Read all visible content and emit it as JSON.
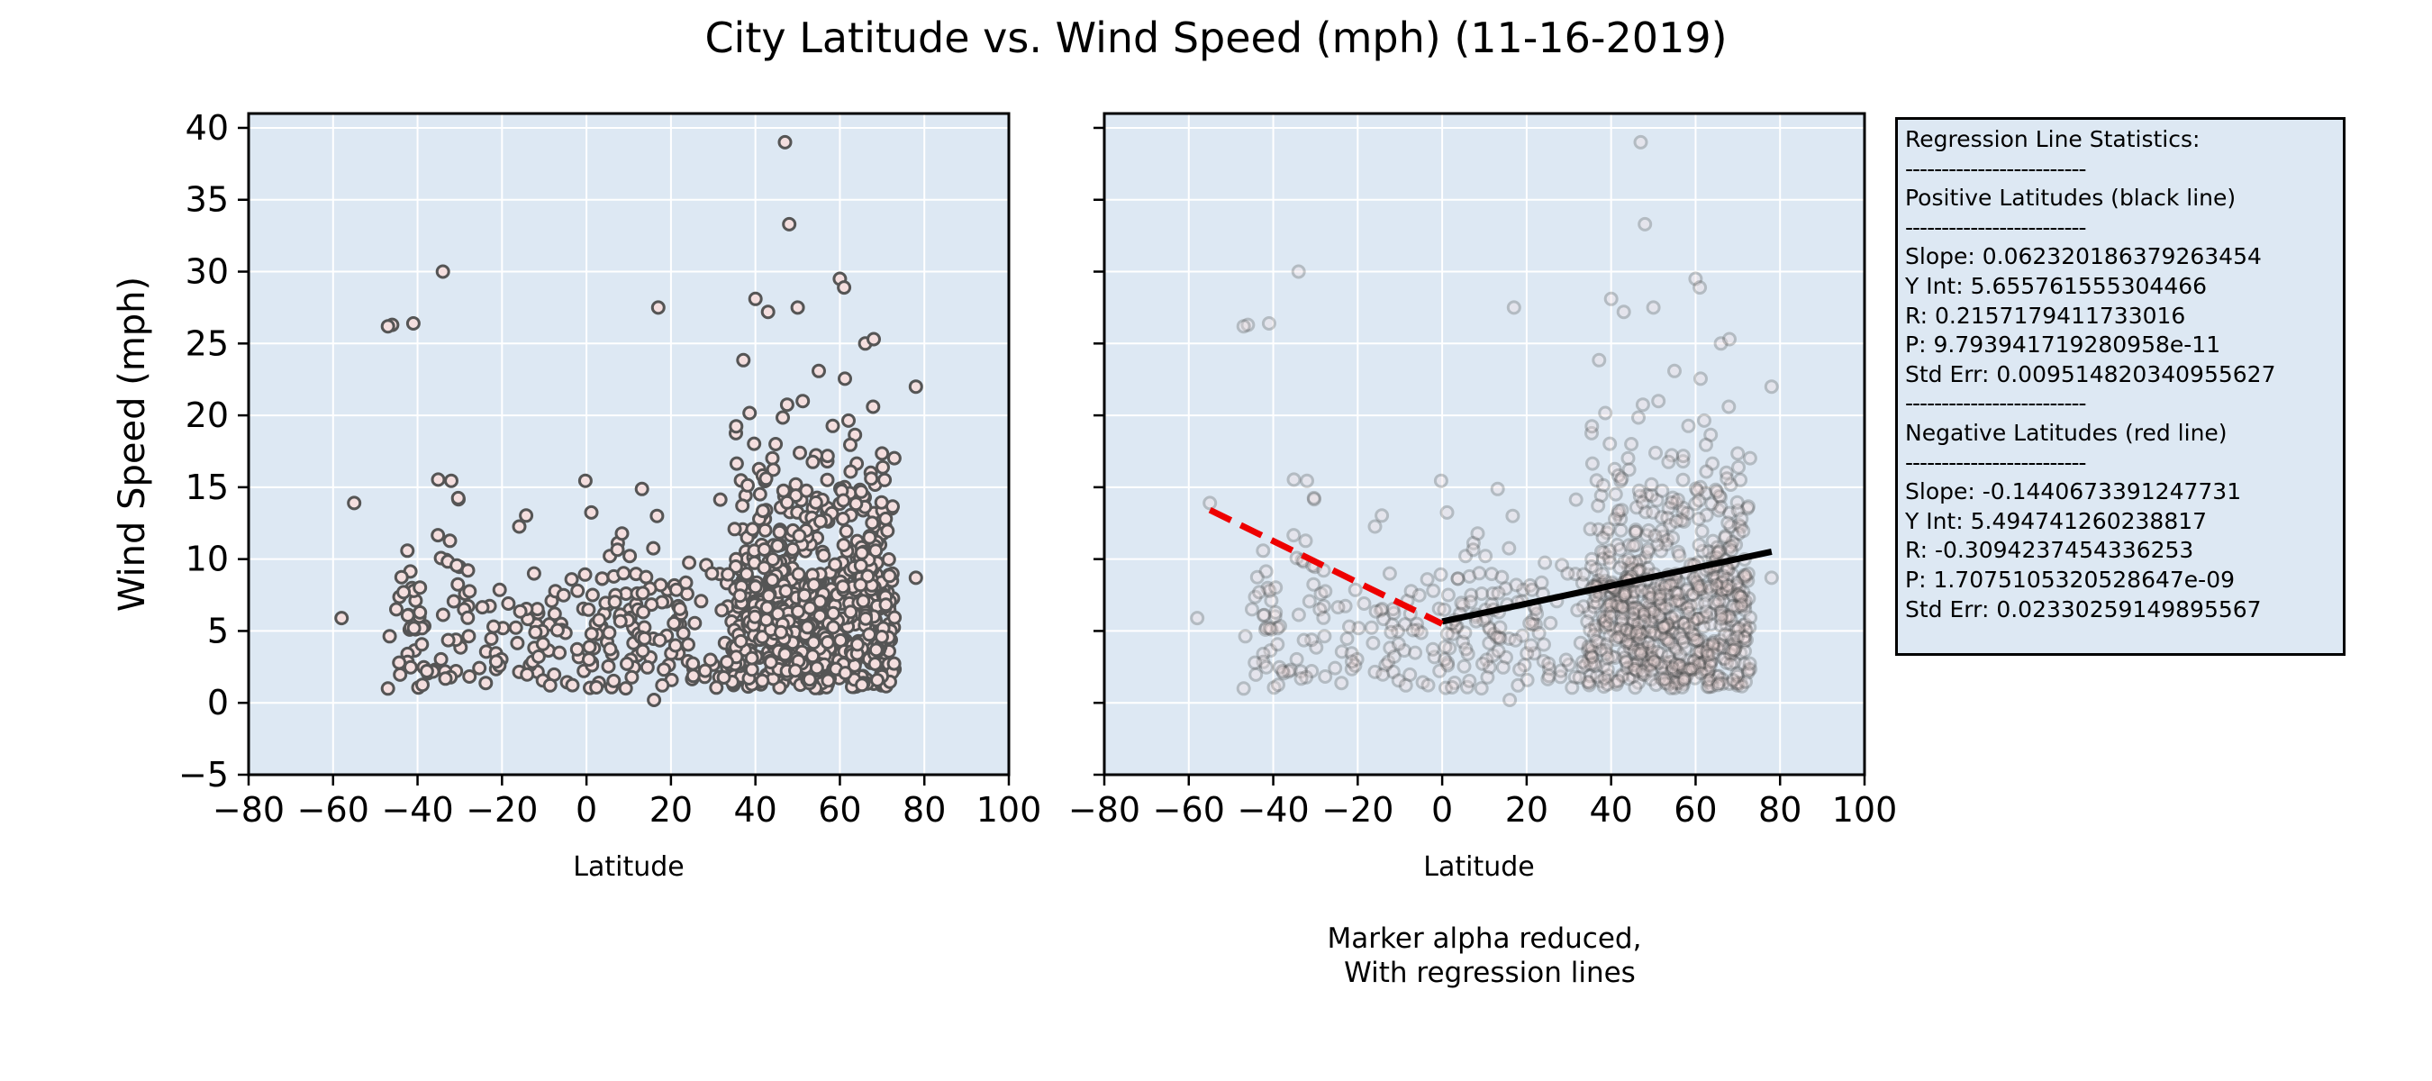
{
  "title": "City Latitude vs. Wind Speed (mph) (11-16-2019)",
  "colors": {
    "axes_bg": "#dde8f3",
    "grid": "#ffffff",
    "marker_edge": "#555555",
    "marker_face": "#f4dede",
    "negative_line": "#ee0000",
    "positive_line": "#000000"
  },
  "chart_data": [
    {
      "type": "scatter",
      "panel": "left",
      "xlabel": "Latitude",
      "ylabel": "Wind Speed (mph)",
      "xlim": [
        -80,
        100
      ],
      "ylim": [
        -5,
        41
      ],
      "xticks": [
        "−80",
        "−60",
        "−40",
        "−20",
        "0",
        "20",
        "40",
        "60",
        "80",
        "100"
      ],
      "yticks": [
        "−5",
        "0",
        "5",
        "10",
        "15",
        "20",
        "25",
        "30",
        "35",
        "40"
      ],
      "grid": true,
      "notable_points": [
        {
          "x": -46,
          "y": 26.3
        },
        {
          "x": -47,
          "y": 26.2
        },
        {
          "x": -41,
          "y": 26.4
        },
        {
          "x": -34,
          "y": 30.0
        },
        {
          "x": 47,
          "y": 39.0
        },
        {
          "x": 48,
          "y": 33.3
        },
        {
          "x": 40,
          "y": 28.1
        },
        {
          "x": 60,
          "y": 29.5
        },
        {
          "x": 61,
          "y": 28.9
        },
        {
          "x": 17,
          "y": 27.5
        },
        {
          "x": 43,
          "y": 27.2
        },
        {
          "x": 50,
          "y": 27.5
        },
        {
          "x": 66,
          "y": 25.0
        },
        {
          "x": 68,
          "y": 25.3
        },
        {
          "x": 78,
          "y": 22.0
        },
        {
          "x": 78,
          "y": 8.7
        },
        {
          "x": -55,
          "y": 13.9
        },
        {
          "x": -58,
          "y": 5.9
        },
        {
          "x": -47,
          "y": 1.0
        },
        {
          "x": 16,
          "y": 0.2
        }
      ],
      "sample_points": 1000
    },
    {
      "type": "scatter",
      "panel": "right",
      "xlabel": "Latitude",
      "caption": [
        "Marker alpha reduced,",
        "With regression lines"
      ],
      "xlim": [
        -80,
        100
      ],
      "ylim": [
        -5,
        41
      ],
      "xticks": [
        "−80",
        "−60",
        "−40",
        "−20",
        "0",
        "20",
        "40",
        "60",
        "80",
        "100"
      ],
      "grid": true,
      "marker_alpha": 0.3,
      "regression_lines": [
        {
          "color": "black",
          "style": "solid",
          "x": [
            0,
            78
          ],
          "slope": 0.062320186379263454,
          "intercept": 5.655761555304466
        },
        {
          "color": "red",
          "style": "dashed",
          "x": [
            -55,
            0
          ],
          "slope": -0.1440673391247731,
          "intercept": 5.494741260238817
        }
      ]
    }
  ],
  "stats_box": {
    "lines": [
      "Regression Line Statistics:",
      "-------------------------",
      "Positive Latitudes (black line)",
      "-------------------------",
      "Slope: 0.062320186379263454",
      "Y Int: 5.655761555304466",
      "R: 0.2157179411733016",
      "P: 9.793941719280958e-11",
      "Std Err: 0.009514820340955627",
      "-------------------------",
      "Negative Latitudes (red line)",
      "-------------------------",
      "Slope: -0.1440673391247731",
      "Y Int: 5.494741260238817",
      "R: -0.3094237454336253",
      "P: 1.7075105320528647e-09",
      "Std Err: 0.02330259149895567"
    ]
  }
}
